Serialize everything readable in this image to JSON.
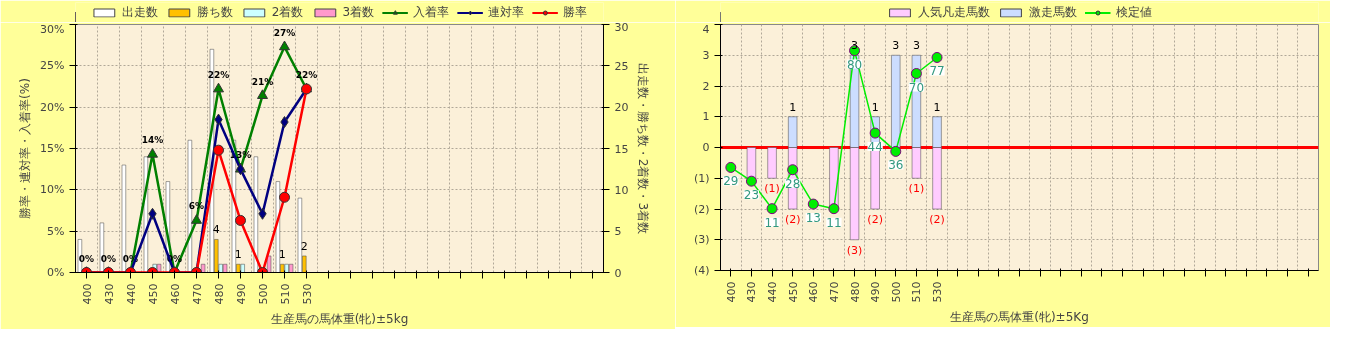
{
  "chart_data": [
    {
      "type": "bar",
      "categories": [
        "400",
        "430",
        "440",
        "450",
        "460",
        "470",
        "480",
        "490",
        "500",
        "510",
        "530",
        null,
        null,
        null,
        null,
        null,
        null,
        null,
        null,
        null,
        null,
        null,
        null,
        null
      ],
      "series": [
        {
          "name": "出走数",
          "axis": "y2",
          "color": "#ffffff",
          "values": [
            4,
            6,
            13,
            14,
            11,
            16,
            27,
            16,
            14,
            11,
            9,
            null,
            null,
            null,
            null,
            null,
            null,
            null,
            null,
            null,
            null,
            null,
            null,
            null
          ]
        },
        {
          "name": "勝ち数",
          "axis": "y2",
          "color": "#ffc000",
          "values": [
            0,
            0,
            0,
            0,
            0,
            0,
            4,
            1,
            0,
            1,
            2,
            null,
            null,
            null,
            null,
            null,
            null,
            null,
            null,
            null,
            null,
            null,
            null,
            null
          ],
          "value_labels": [
            null,
            null,
            null,
            null,
            null,
            null,
            "4",
            "1",
            null,
            "1",
            "2",
            null,
            null,
            null,
            null,
            null,
            null,
            null,
            null,
            null,
            null,
            null,
            null,
            null
          ]
        },
        {
          "name": "2着数",
          "axis": "y2",
          "color": "#ccffff",
          "values": [
            0,
            0,
            0,
            1,
            0,
            0,
            1,
            1,
            0,
            1,
            0,
            null,
            null,
            null,
            null,
            null,
            null,
            null,
            null,
            null,
            null,
            null,
            null,
            null
          ]
        },
        {
          "name": "3着数",
          "axis": "y2",
          "color": "#ff99cc",
          "values": [
            0,
            0,
            0,
            1,
            0,
            1,
            1,
            0,
            2,
            1,
            0,
            null,
            null,
            null,
            null,
            null,
            null,
            null,
            null,
            null,
            null,
            null,
            null,
            null
          ]
        },
        {
          "name": "入着率",
          "type": "line",
          "marker": "triangle",
          "color": "#008000",
          "values": [
            0,
            0,
            0,
            14.3,
            0,
            6.3,
            22.2,
            12.5,
            21.4,
            27.3,
            22.2,
            null,
            null,
            null,
            null,
            null,
            null,
            null,
            null,
            null,
            null,
            null,
            null,
            null
          ],
          "value_labels": [
            "0%",
            "0%",
            "0%",
            "14%",
            "0%",
            "6%",
            "22%",
            "13%",
            "21%",
            "27%",
            "22%",
            null,
            null,
            null,
            null,
            null,
            null,
            null,
            null,
            null,
            null,
            null,
            null,
            null
          ]
        },
        {
          "name": "連対率",
          "type": "line",
          "marker": "diamond",
          "color": "#000080",
          "values": [
            0,
            0,
            0,
            7.1,
            0,
            0,
            18.5,
            12.5,
            7.1,
            18.2,
            22.2,
            null,
            null,
            null,
            null,
            null,
            null,
            null,
            null,
            null,
            null,
            null,
            null,
            null
          ]
        },
        {
          "name": "勝率",
          "type": "line",
          "marker": "circle",
          "color": "#ff0000",
          "values": [
            0,
            0,
            0,
            0,
            0,
            0,
            14.8,
            6.3,
            0,
            9.1,
            22.2,
            null,
            null,
            null,
            null,
            null,
            null,
            null,
            null,
            null,
            null,
            null,
            null,
            null
          ]
        }
      ],
      "xlabel": "生産馬の馬体重(牝)±5kg",
      "ylabel": "勝率・連対率・入着率(%)",
      "y2label": "出走数・勝ち数・2着数・3着数",
      "ylim": [
        0,
        30
      ],
      "yticks": [
        {
          "value": 0,
          "label": "0%"
        },
        {
          "value": 5,
          "label": "5%"
        },
        {
          "value": 10,
          "label": "10%"
        },
        {
          "value": 15,
          "label": "15%"
        },
        {
          "value": 20,
          "label": "20%"
        },
        {
          "value": 25,
          "label": "25%"
        },
        {
          "value": 30,
          "label": "30%"
        }
      ],
      "y2lim": [
        0,
        30
      ],
      "y2ticks": [
        0,
        5,
        10,
        15,
        20,
        25,
        30
      ],
      "grid": true,
      "legend": "top"
    },
    {
      "type": "bar",
      "stacked": true,
      "categories": [
        "400",
        "430",
        "440",
        "450",
        "460",
        "470",
        "480",
        "490",
        "500",
        "510",
        "530",
        null,
        null,
        null,
        null,
        null,
        null,
        null,
        null,
        null,
        null,
        null,
        null,
        null,
        null,
        null,
        null,
        null,
        null
      ],
      "series": [
        {
          "name": "人気凡走馬数",
          "color": "#ffccff",
          "values": [
            0,
            -1,
            -1,
            -2,
            0,
            -2,
            -3,
            -2,
            0,
            -1,
            -2,
            null,
            null,
            null,
            null,
            null,
            null,
            null,
            null,
            null,
            null,
            null,
            null,
            null,
            null,
            null,
            null,
            null,
            null
          ],
          "value_labels": [
            null,
            null,
            "(1)",
            "(2)",
            null,
            null,
            "(3)",
            "(2)",
            null,
            "(1)",
            "(2)",
            null,
            null,
            null,
            null,
            null,
            null,
            null,
            null,
            null,
            null,
            null,
            null,
            null,
            null,
            null,
            null,
            null,
            null
          ]
        },
        {
          "name": "激走馬数",
          "color": "#ccddff",
          "values": [
            0,
            0,
            0,
            1,
            0,
            0,
            3,
            1,
            3,
            3,
            1,
            null,
            null,
            null,
            null,
            null,
            null,
            null,
            null,
            null,
            null,
            null,
            null,
            null,
            null,
            null,
            null,
            null,
            null
          ],
          "value_labels": [
            null,
            null,
            null,
            "1",
            null,
            null,
            "3",
            "1",
            "3",
            "3",
            "1",
            null,
            null,
            null,
            null,
            null,
            null,
            null,
            null,
            null,
            null,
            null,
            null,
            null,
            null,
            null,
            null,
            null,
            null
          ]
        },
        {
          "name": "検定値",
          "type": "line",
          "axis": "y2",
          "marker": "circle",
          "color": "#00ee00",
          "values": [
            29,
            23,
            11,
            28,
            13,
            11,
            80,
            44,
            36,
            70,
            77,
            null,
            null,
            null,
            null,
            null,
            null,
            null,
            null,
            null,
            null,
            null,
            null,
            null,
            null,
            null,
            null,
            null,
            null
          ],
          "value_labels": [
            "29",
            "23",
            "11",
            "28",
            "13",
            "11",
            "80",
            "44",
            "36",
            "70",
            "77",
            null,
            null,
            null,
            null,
            null,
            null,
            null,
            null,
            null,
            null,
            null,
            null,
            null,
            null,
            null,
            null,
            null,
            null
          ]
        }
      ],
      "xlabel": "生産馬の馬体重(牝)±5Kg",
      "ylim": [
        -4,
        4
      ],
      "yticks": [
        4,
        3,
        2,
        1,
        0,
        {
          "value": -1,
          "label": "(1)"
        },
        {
          "value": -2,
          "label": "(2)"
        },
        {
          "value": -3,
          "label": "(3)"
        },
        {
          "value": -4,
          "label": "(4)"
        }
      ],
      "y2lim": [
        -16,
        91.4
      ],
      "tick_labels": "xy",
      "grid": true,
      "legend": "top",
      "ref_lines": [
        {
          "axis": "y",
          "value": 0,
          "color": "#ff0000"
        }
      ]
    }
  ]
}
